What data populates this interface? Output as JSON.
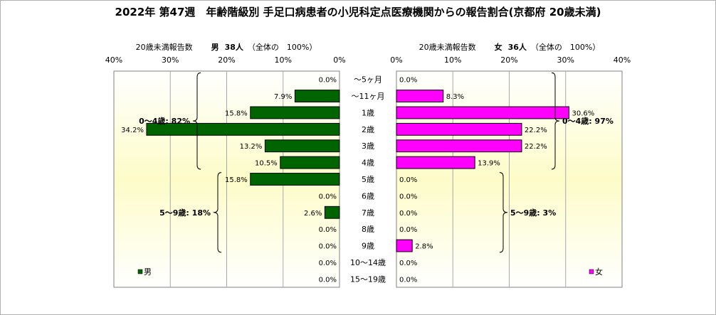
{
  "chart_data": {
    "type": "bar",
    "orientation": "horizontal",
    "title": "2022年 第47週　年齢階級別 手足口病患者の小児科定点医療機関からの報告割合(京都府 20歳未満)",
    "categories": [
      "～5ヶ月",
      "～11ヶ月",
      "1歳",
      "2歳",
      "3歳",
      "4歳",
      "5歳",
      "6歳",
      "7歳",
      "8歳",
      "9歳",
      "10～14歳",
      "15～19歳"
    ],
    "xlim": [
      0,
      40
    ],
    "ticks": [
      0,
      10,
      20,
      30,
      40
    ],
    "tick_labels": [
      "0%",
      "10%",
      "20%",
      "30%",
      "40%"
    ],
    "grid": true,
    "series": [
      {
        "name": "男",
        "color": "#006400",
        "header": {
          "count_label": "20歳未満報告数",
          "name": "男",
          "count": "38人",
          "total": "（全体の　100%）"
        },
        "values": [
          0.0,
          7.9,
          15.8,
          34.2,
          13.2,
          10.5,
          15.8,
          0.0,
          2.6,
          0.0,
          0.0,
          0.0,
          0.0
        ],
        "value_labels": [
          "0.0%",
          "7.9%",
          "15.8%",
          "34.2%",
          "13.2%",
          "10.5%",
          "15.8%",
          "0.0%",
          "2.6%",
          "0.0%",
          "0.0%",
          "0.0%",
          "0.0%"
        ],
        "groups": [
          {
            "label": "0～4歳: 82%",
            "from": 0,
            "to": 5
          },
          {
            "label": "5～9歳: 18%",
            "from": 6,
            "to": 10
          }
        ],
        "legend": "男"
      },
      {
        "name": "女",
        "color": "#ff00ff",
        "header": {
          "count_label": "20歳未満報告数",
          "name": "女",
          "count": "36人",
          "total": "（全体の　100%）"
        },
        "values": [
          0.0,
          8.3,
          30.6,
          22.2,
          22.2,
          13.9,
          0.0,
          0.0,
          0.0,
          0.0,
          2.8,
          0.0,
          0.0
        ],
        "value_labels": [
          "0.0%",
          "8.3%",
          "30.6%",
          "22.2%",
          "22.2%",
          "13.9%",
          "0.0%",
          "0.0%",
          "0.0%",
          "0.0%",
          "2.8%",
          "0.0%",
          "0.0%"
        ],
        "groups": [
          {
            "label": "0～4歳: 97%",
            "from": 0,
            "to": 5
          },
          {
            "label": "5～9歳: 3%",
            "from": 6,
            "to": 10
          }
        ],
        "legend": "女"
      }
    ]
  }
}
